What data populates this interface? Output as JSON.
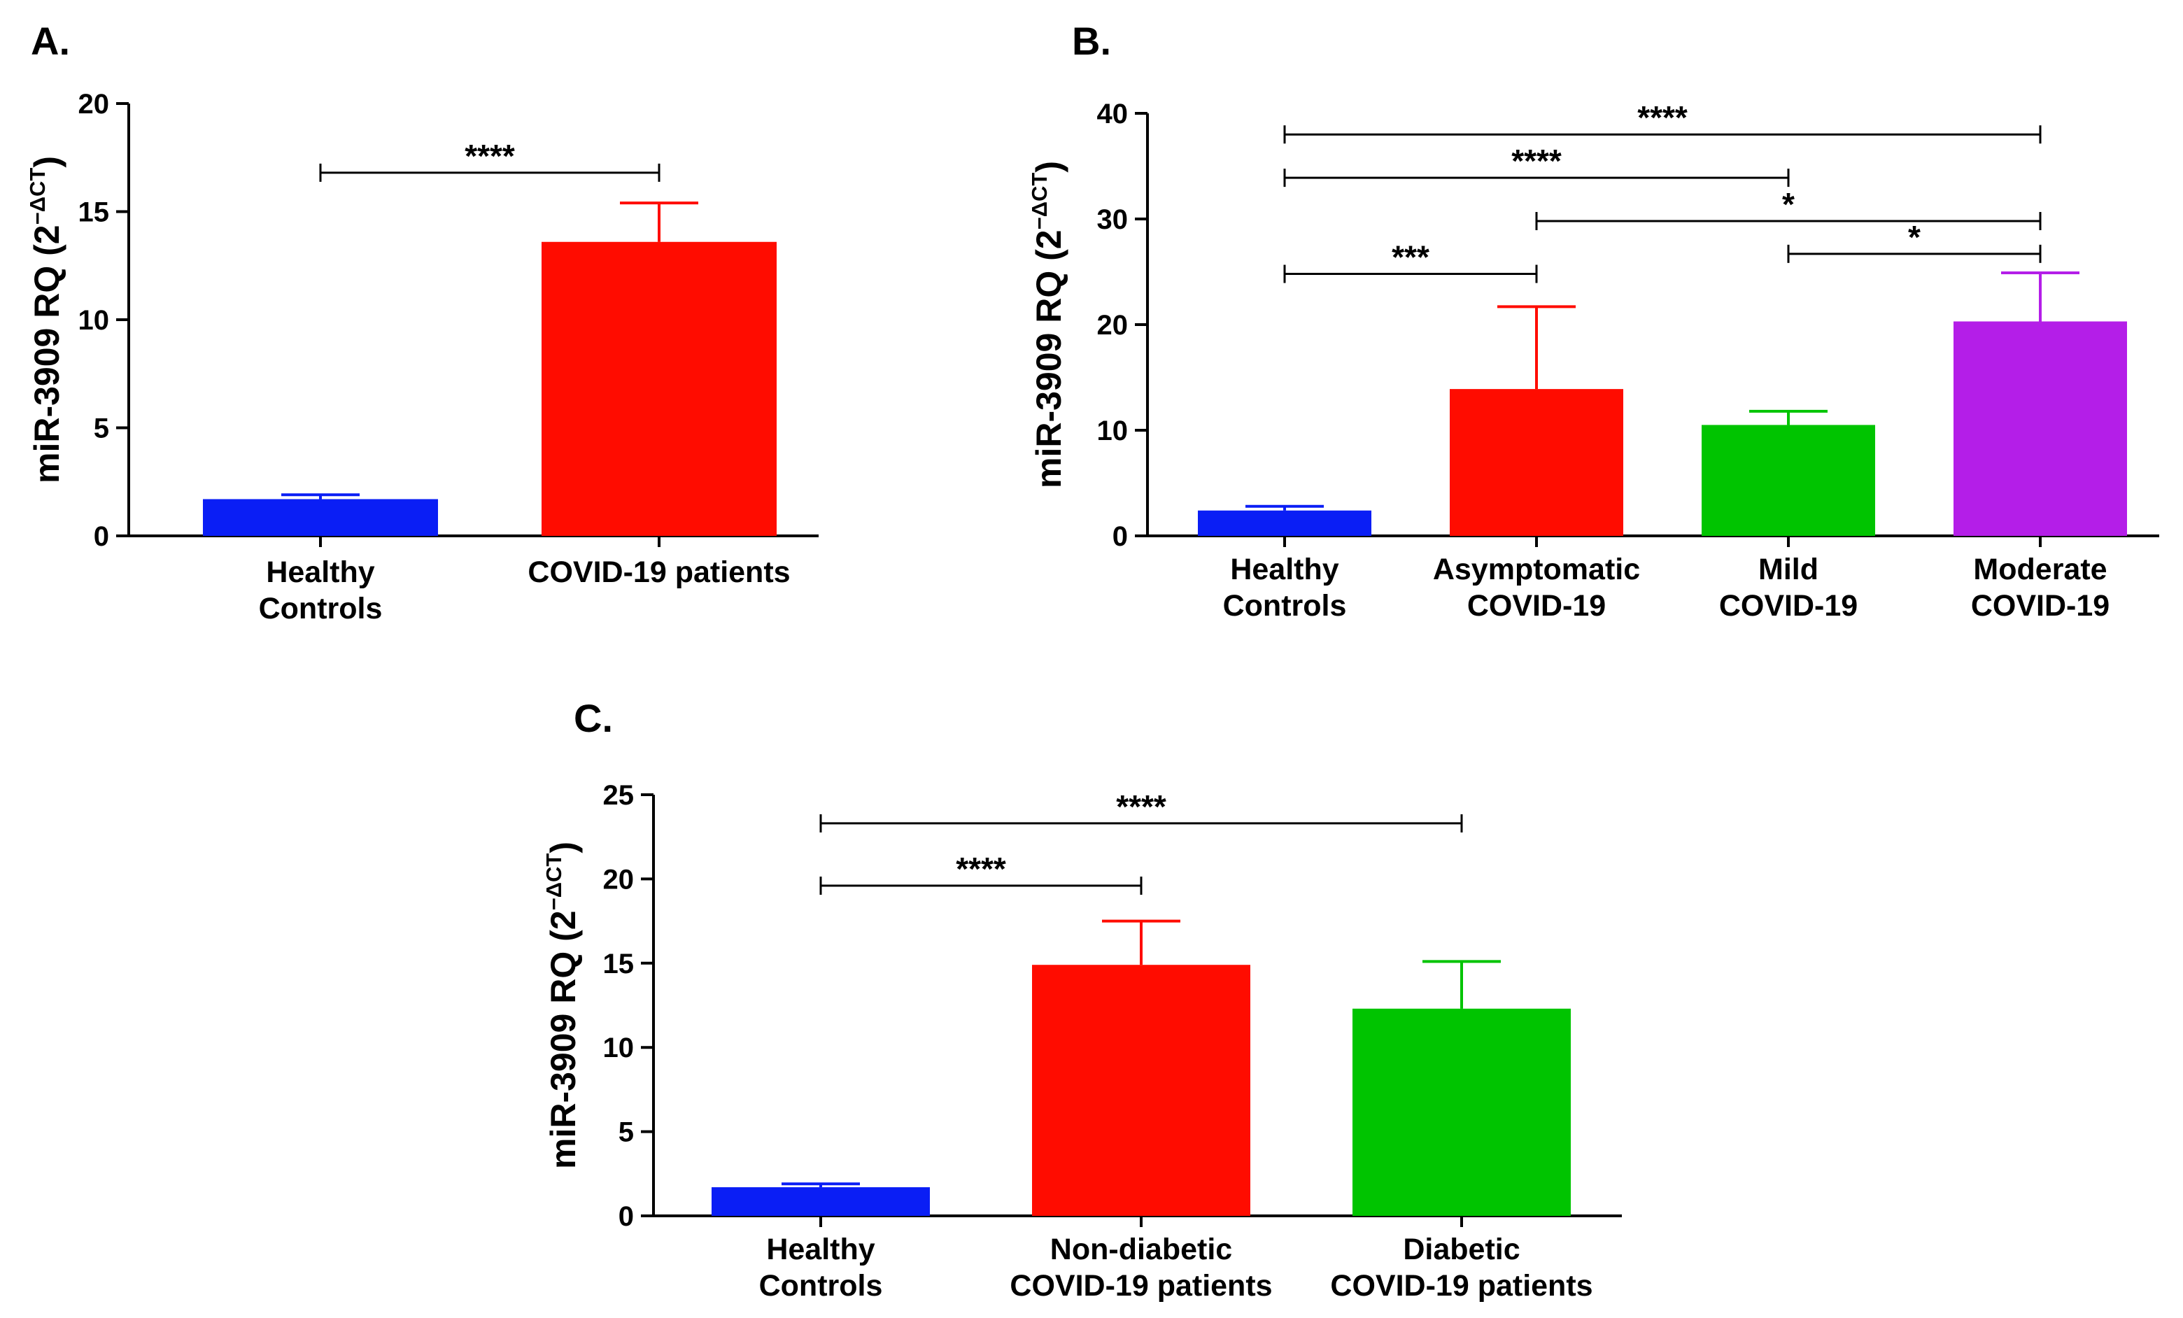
{
  "chart_data": [
    {
      "id": "A",
      "type": "bar",
      "panel_label": "A.",
      "ylabel": "miR-3909 RQ (2",
      "ylabel_sup": "−ΔCT",
      "ylabel_close": ")",
      "ylim": [
        0,
        20
      ],
      "yticks": [
        "0",
        "5",
        "10",
        "15",
        "20"
      ],
      "categories": [
        [
          "Healthy",
          "Controls"
        ],
        [
          "COVID-19 patients"
        ]
      ],
      "values": [
        1.7,
        13.6
      ],
      "errors": [
        0.2,
        1.8
      ],
      "colors": [
        "#0a1ef5",
        "#ff0c00"
      ],
      "significance": [
        {
          "from": 0,
          "to": 1,
          "y": 16.8,
          "label": "****"
        }
      ]
    },
    {
      "id": "B",
      "type": "bar",
      "panel_label": "B.",
      "ylabel": "miR-3909 RQ (2",
      "ylabel_sup": "−ΔCT",
      "ylabel_close": ")",
      "ylim": [
        0,
        40
      ],
      "yticks": [
        "0",
        "10",
        "20",
        "30",
        "40"
      ],
      "categories": [
        [
          "Healthy",
          "Controls"
        ],
        [
          "Asymptomatic",
          "COVID-19"
        ],
        [
          "Mild",
          "COVID-19"
        ],
        [
          "Moderate",
          "COVID-19"
        ]
      ],
      "values": [
        2.4,
        13.9,
        10.5,
        20.3
      ],
      "errors": [
        0.4,
        7.8,
        1.3,
        4.6
      ],
      "colors": [
        "#0a1ef5",
        "#ff0c00",
        "#00c400",
        "#b41ee8"
      ],
      "significance": [
        {
          "from": 0,
          "to": 1,
          "y": 24.8,
          "label": "***"
        },
        {
          "from": 2,
          "to": 3,
          "y": 26.7,
          "label": "*"
        },
        {
          "from": 1,
          "to": 3,
          "y": 29.8,
          "label": "*"
        },
        {
          "from": 0,
          "to": 2,
          "y": 33.9,
          "label": "****"
        },
        {
          "from": 0,
          "to": 3,
          "y": 38.0,
          "label": "****"
        }
      ]
    },
    {
      "id": "C",
      "type": "bar",
      "panel_label": "C.",
      "ylabel": "miR-3909 RQ (2",
      "ylabel_sup": "−ΔCT",
      "ylabel_close": ")",
      "ylim": [
        0,
        25
      ],
      "yticks": [
        "0",
        "5",
        "10",
        "15",
        "20",
        "25"
      ],
      "categories": [
        [
          "Healthy",
          "Controls"
        ],
        [
          "Non-diabetic",
          "COVID-19 patients"
        ],
        [
          "Diabetic",
          "COVID-19 patients"
        ]
      ],
      "values": [
        1.7,
        14.9,
        12.3
      ],
      "errors": [
        0.2,
        2.6,
        2.8
      ],
      "colors": [
        "#0a1ef5",
        "#ff0c00",
        "#00c400"
      ],
      "significance": [
        {
          "from": 0,
          "to": 1,
          "y": 19.6,
          "label": "****"
        },
        {
          "from": 0,
          "to": 2,
          "y": 23.3,
          "label": "****"
        }
      ]
    }
  ]
}
